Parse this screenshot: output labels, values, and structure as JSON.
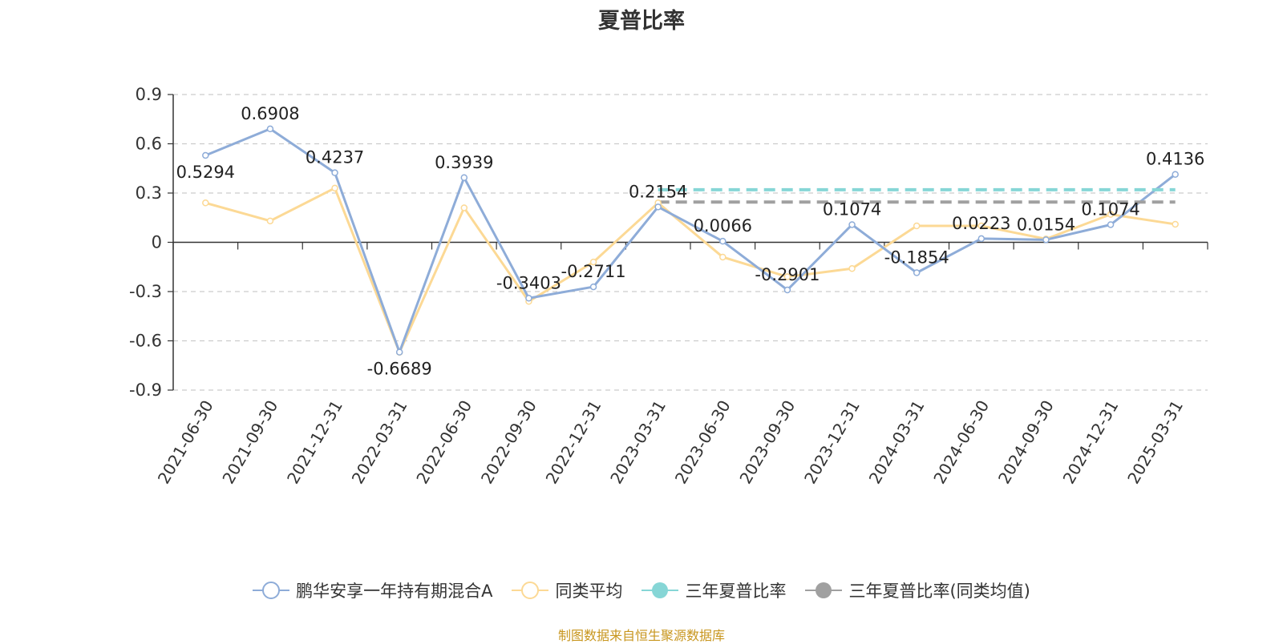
{
  "chart_data": {
    "type": "line",
    "title": "夏普比率",
    "categories": [
      "2021-06-30",
      "2021-09-30",
      "2021-12-31",
      "2022-03-31",
      "2022-06-30",
      "2022-09-30",
      "2022-12-31",
      "2023-03-31",
      "2023-06-30",
      "2023-09-30",
      "2023-12-31",
      "2024-03-31",
      "2024-06-30",
      "2024-09-30",
      "2024-12-31",
      "2025-03-31"
    ],
    "ylim": [
      -0.9,
      0.9
    ],
    "yticks": [
      "0.9",
      "0.6",
      "0.3",
      "0",
      "-0.3",
      "-0.6",
      "-0.9"
    ],
    "grid": true,
    "legend_position": "bottom",
    "series": [
      {
        "name": "鹏华安享一年持有期混合A",
        "color": "#8eacd8",
        "values": [
          0.5294,
          0.6908,
          0.4237,
          -0.6689,
          0.3939,
          -0.3403,
          -0.2711,
          0.2154,
          0.0066,
          -0.2901,
          0.1074,
          -0.1854,
          0.0223,
          0.0154,
          0.1074,
          0.4136
        ],
        "labels": [
          "0.5294",
          "0.6908",
          "0.4237",
          "-0.6689",
          "0.3939",
          "-0.3403",
          "-0.2711",
          "0.2154",
          "0.0066",
          "-0.2901",
          "0.1074",
          "-0.1854",
          "0.0223",
          "0.0154",
          "0.1074",
          "0.4136"
        ]
      },
      {
        "name": "同类平均",
        "color": "#fcd995",
        "values": [
          0.24,
          0.13,
          0.33,
          -0.67,
          0.21,
          -0.36,
          -0.12,
          0.24,
          -0.09,
          -0.21,
          -0.16,
          0.1,
          0.1,
          0.02,
          0.17,
          0.11
        ]
      },
      {
        "name": "三年夏普比率",
        "color": "#86d6d6",
        "style": "dashed",
        "start": "2023-03-31",
        "end": "2025-03-31",
        "value": 0.32
      },
      {
        "name": "三年夏普比率(同类均值)",
        "color": "#a0a0a0",
        "style": "dashed",
        "start": "2023-03-31",
        "end": "2025-03-31",
        "value": 0.245
      }
    ],
    "source": "制图数据来自恒生聚源数据库"
  }
}
